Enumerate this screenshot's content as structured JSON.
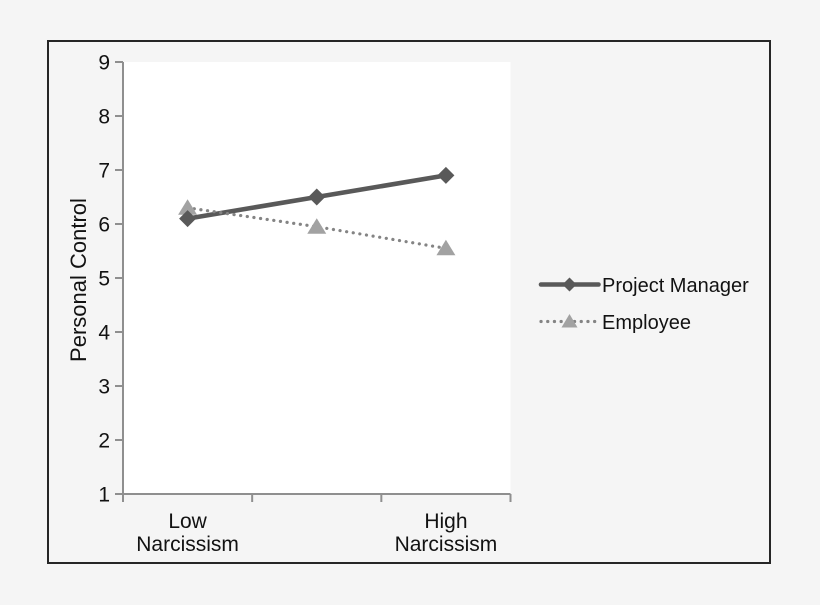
{
  "figure": {
    "background_color": "#f5f5f5",
    "plot_background_color": "#ffffff",
    "frame_border_color": "#262626",
    "axis_color": "#8f8f8f",
    "text_color": "#121212"
  },
  "chart_data": {
    "type": "line",
    "title": "",
    "xlabel": "",
    "ylabel": "Personal Control",
    "ylim": [
      1,
      9
    ],
    "yticks": [
      1,
      2,
      3,
      4,
      5,
      6,
      7,
      8,
      9
    ],
    "num_categories": 3,
    "x_tick_labels": [
      {
        "position": 0,
        "lines": [
          "Low",
          "Narcissism"
        ]
      },
      {
        "position": 2,
        "lines": [
          "High",
          "Narcissism"
        ]
      }
    ],
    "grid": false,
    "legend_position": "right-center",
    "series": [
      {
        "name": "Project Manager",
        "values": [
          6.1,
          6.5,
          6.9
        ],
        "line_style": "solid",
        "marker": "diamond",
        "color": "#595959",
        "marker_color": "#595959"
      },
      {
        "name": "Employee",
        "values": [
          6.3,
          5.95,
          5.55
        ],
        "line_style": "dotted",
        "marker": "triangle",
        "color": "#848484",
        "marker_color": "#a2a2a2"
      }
    ]
  }
}
